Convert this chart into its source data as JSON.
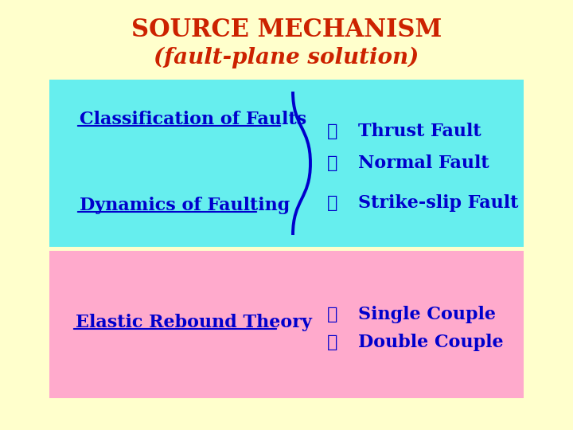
{
  "title_line1": "SOURCE MECHANISM",
  "title_line2": "(fault-plane solution)",
  "title_color": "#cc2200",
  "bg_color": "#ffffcc",
  "cyan_box_color": "#66eeee",
  "pink_box_color": "#ffaacc",
  "text_color": "#0000cc",
  "left_labels": [
    "Classification of Faults",
    "Dynamics of Faulting",
    "Elastic Rebound Theory"
  ],
  "right_labels_top": [
    "Thrust Fault",
    "Normal Fault",
    "Strike-slip Fault"
  ],
  "right_labels_bottom": [
    "Single Couple",
    "Double Couple"
  ]
}
